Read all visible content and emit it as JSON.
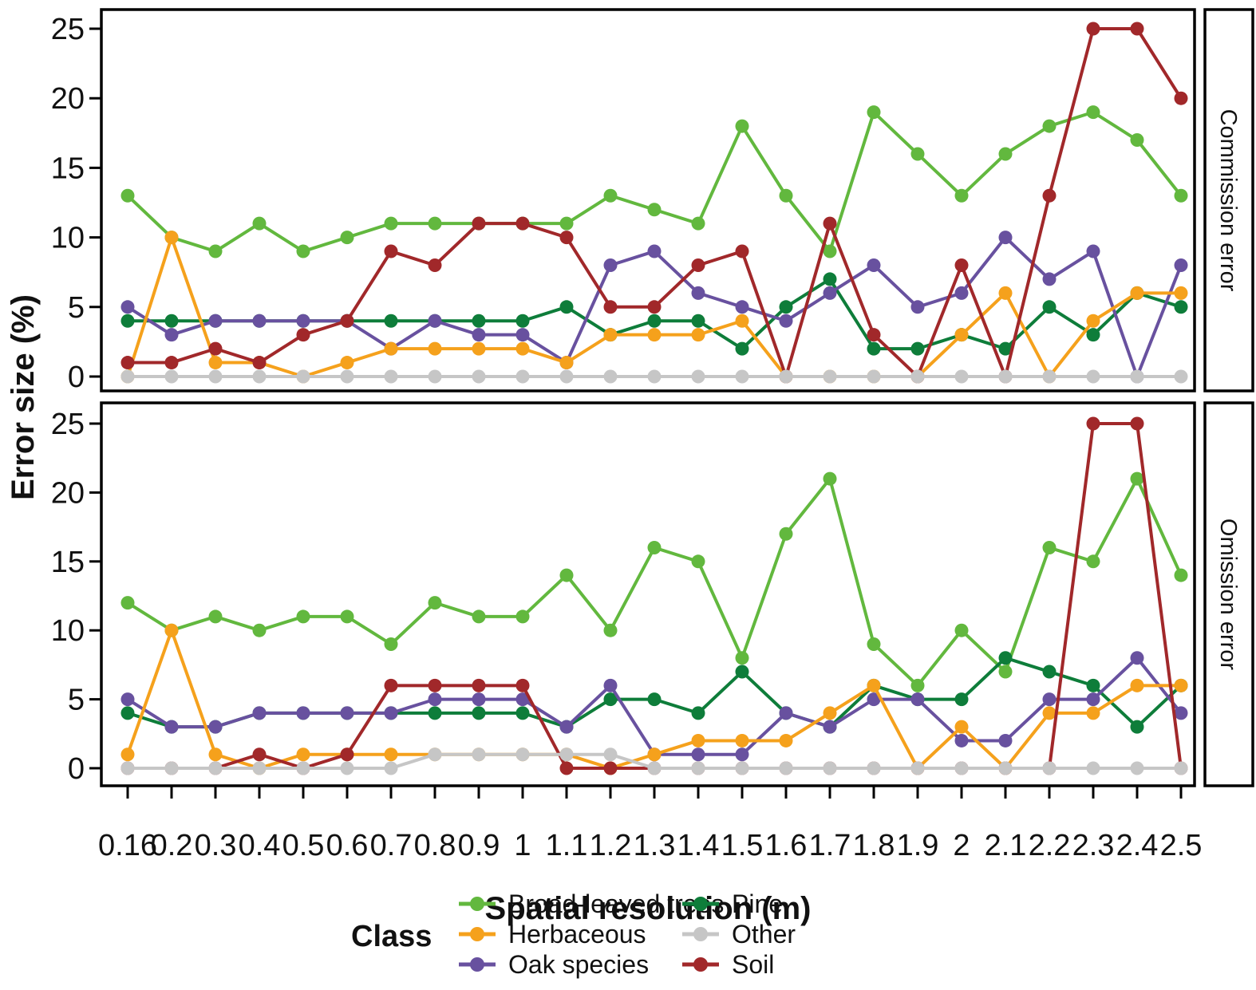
{
  "chart_data": {
    "type": "line",
    "title": "",
    "xlabel": "Spatial resolution (m)",
    "ylabel": "Error size (%)",
    "ylim": [
      0,
      25
    ],
    "yticks": [
      0,
      5,
      10,
      15,
      20,
      25
    ],
    "x_categories": [
      "0.16",
      "0.2",
      "0.3",
      "0.4",
      "0.5",
      "0.6",
      "0.7",
      "0.8",
      "0.9",
      "1",
      "1.1",
      "1.2",
      "1.3",
      "1.4",
      "1.5",
      "1.6",
      "1.7",
      "1.8",
      "1.9",
      "2",
      "2.1",
      "2.2",
      "2.3",
      "2.4",
      "2.5"
    ],
    "legend_title": "Class",
    "legend_columns": [
      [
        "Broad-leaved trees",
        "Herbaceous",
        "Oak species"
      ],
      [
        "Pine",
        "Other",
        "Soil"
      ]
    ],
    "draw_order": [
      "Broad-leaved trees",
      "Pine",
      "Oak species",
      "Herbaceous",
      "Soil",
      "Other"
    ],
    "colors": {
      "Broad-leaved trees": "#62b83e",
      "Herbaceous": "#f5a11c",
      "Oak species": "#68519f",
      "Pine": "#0e7d3a",
      "Other": "#c6c6c6",
      "Soil": "#a1282a"
    },
    "facets": [
      {
        "label": "Commission error",
        "series": [
          {
            "name": "Broad-leaved trees",
            "values": [
              13,
              10,
              9,
              11,
              9,
              10,
              11,
              11,
              11,
              11,
              11,
              13,
              12,
              11,
              18,
              13,
              9,
              19,
              16,
              13,
              16,
              18,
              19,
              17,
              13
            ]
          },
          {
            "name": "Herbaceous",
            "values": [
              0,
              10,
              1,
              1,
              0,
              1,
              2,
              2,
              2,
              2,
              1,
              3,
              3,
              3,
              4,
              0,
              0,
              0,
              0,
              3,
              6,
              0,
              4,
              6,
              6
            ]
          },
          {
            "name": "Oak species",
            "values": [
              5,
              3,
              4,
              4,
              4,
              4,
              2,
              4,
              3,
              3,
              1,
              8,
              9,
              6,
              5,
              4,
              6,
              8,
              5,
              6,
              10,
              7,
              9,
              0,
              8
            ]
          },
          {
            "name": "Pine",
            "values": [
              4,
              4,
              4,
              4,
              4,
              4,
              4,
              4,
              4,
              4,
              5,
              3,
              4,
              4,
              2,
              5,
              7,
              2,
              2,
              3,
              2,
              5,
              3,
              6,
              5
            ]
          },
          {
            "name": "Other",
            "values": [
              0,
              0,
              0,
              0,
              0,
              0,
              0,
              0,
              0,
              0,
              0,
              0,
              0,
              0,
              0,
              0,
              0,
              0,
              0,
              0,
              0,
              0,
              0,
              0,
              0
            ]
          },
          {
            "name": "Soil",
            "values": [
              1,
              1,
              2,
              1,
              3,
              4,
              9,
              8,
              11,
              11,
              10,
              5,
              5,
              8,
              9,
              0,
              11,
              3,
              0,
              8,
              0,
              13,
              25,
              25,
              20
            ]
          }
        ]
      },
      {
        "label": "Omission error",
        "series": [
          {
            "name": "Broad-leaved trees",
            "values": [
              12,
              10,
              11,
              10,
              11,
              11,
              9,
              12,
              11,
              11,
              14,
              10,
              16,
              15,
              8,
              17,
              21,
              9,
              6,
              10,
              7,
              16,
              15,
              21,
              14
            ]
          },
          {
            "name": "Herbaceous",
            "values": [
              1,
              10,
              1,
              0,
              1,
              1,
              1,
              1,
              1,
              1,
              1,
              0,
              1,
              2,
              2,
              2,
              4,
              6,
              0,
              3,
              0,
              4,
              4,
              6,
              6
            ]
          },
          {
            "name": "Oak species",
            "values": [
              5,
              3,
              3,
              4,
              4,
              4,
              4,
              5,
              5,
              5,
              3,
              6,
              1,
              1,
              1,
              4,
              3,
              5,
              5,
              2,
              2,
              5,
              5,
              8,
              4
            ]
          },
          {
            "name": "Pine",
            "values": [
              4,
              3,
              3,
              4,
              4,
              4,
              4,
              4,
              4,
              4,
              3,
              5,
              5,
              4,
              7,
              4,
              3,
              6,
              5,
              5,
              8,
              7,
              6,
              3,
              6
            ]
          },
          {
            "name": "Other",
            "values": [
              0,
              0,
              0,
              0,
              0,
              0,
              0,
              1,
              1,
              1,
              1,
              1,
              0,
              0,
              0,
              0,
              0,
              0,
              0,
              0,
              0,
              0,
              0,
              0,
              0
            ]
          },
          {
            "name": "Soil",
            "values": [
              0,
              0,
              0,
              1,
              0,
              1,
              6,
              6,
              6,
              6,
              0,
              0,
              0,
              0,
              0,
              0,
              0,
              0,
              0,
              0,
              0,
              0,
              25,
              25,
              0
            ]
          }
        ]
      }
    ]
  }
}
